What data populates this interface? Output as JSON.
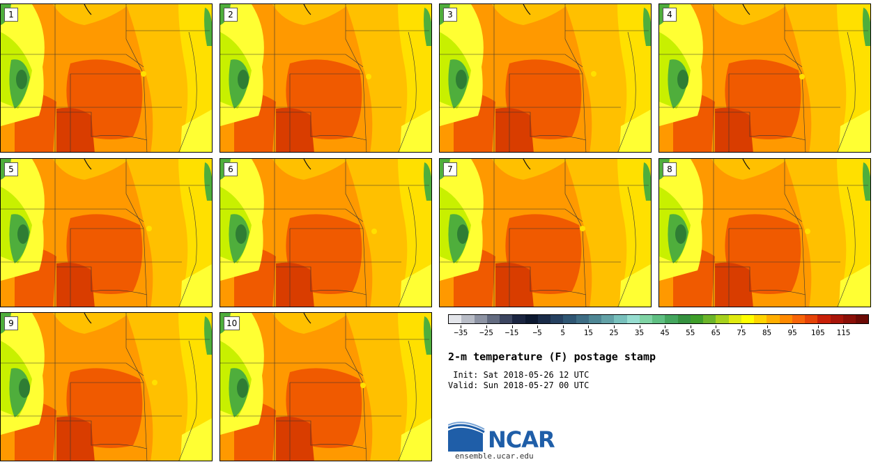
{
  "panels": [
    {
      "label": "1"
    },
    {
      "label": "2"
    },
    {
      "label": "3"
    },
    {
      "label": "4"
    },
    {
      "label": "5"
    },
    {
      "label": "6"
    },
    {
      "label": "7"
    },
    {
      "label": "8"
    },
    {
      "label": "9"
    },
    {
      "label": "10"
    }
  ],
  "colorbar": {
    "colors": [
      "#e3e5ea",
      "#b8bcc6",
      "#8d93a3",
      "#636b80",
      "#3c4560",
      "#1b2541",
      "#0c1830",
      "#1a2b48",
      "#254060",
      "#2f5673",
      "#3e6d84",
      "#4e8694",
      "#62a1a6",
      "#78c0bc",
      "#96ddd0",
      "#7fd3a4",
      "#5fbf82",
      "#44a65e",
      "#35913f",
      "#3f9e2a",
      "#6cb52a",
      "#a6d11e",
      "#e0ea10",
      "#ffff00",
      "#ffd400",
      "#ffae00",
      "#ff8a00",
      "#f7650a",
      "#e64408",
      "#c82008",
      "#a8150a",
      "#8a0f08",
      "#6b0a05"
    ],
    "ticks": [
      "−35",
      "−25",
      "−15",
      "−5",
      "5",
      "15",
      "25",
      "35",
      "45",
      "55",
      "65",
      "75",
      "85",
      "95",
      "105",
      "115"
    ],
    "tick_min": -35,
    "tick_max": 115,
    "min": -40,
    "max": 125
  },
  "title": "2-m temperature (F) postage stamp",
  "init_label": " Init: Sat 2018-05-26 12 UTC",
  "valid_label": "Valid: Sun 2018-05-27 00 UTC",
  "logo": {
    "text": "NCAR",
    "url": "ensemble.ucar.edu",
    "accent": "#1f5ea8"
  },
  "map_colors": {
    "base": "#ff9900",
    "hot": "#f05a00",
    "very_hot": "#d93d00",
    "warm": "#ffc000",
    "mild": "#ffe000",
    "cool": "#ffff33",
    "lime": "#c8f000",
    "green": "#4fae3c",
    "dark_green": "#2f7d34",
    "border": "#333333"
  }
}
